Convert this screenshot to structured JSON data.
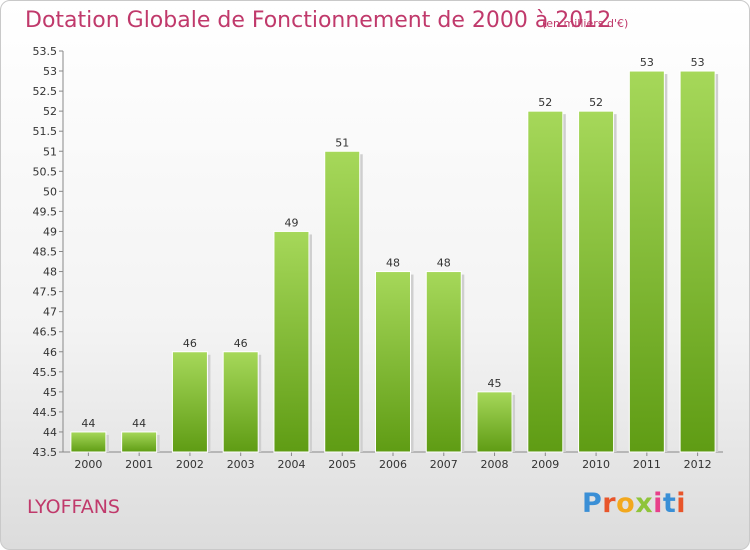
{
  "header": {
    "title": "Dotation Globale de Fonctionnement de 2000 à 2012",
    "unit": "(en milliers d'€)"
  },
  "footer": {
    "city": "LYOFFANS",
    "brand": "Proxiti",
    "brand_colors": [
      "#3a8fd6",
      "#e8552a",
      "#f2a81d",
      "#8fc43a",
      "#e83f8a",
      "#3a8fd6",
      "#e8552a"
    ]
  },
  "colors": {
    "title": "#c0396b",
    "bar_top": "#a6d85a",
    "bar_bottom": "#5f9c14"
  },
  "chart_data": {
    "type": "bar",
    "title": "Dotation Globale de Fonctionnement de 2000 à 2012",
    "xlabel": "",
    "ylabel": "",
    "categories": [
      "2000",
      "2001",
      "2002",
      "2003",
      "2004",
      "2005",
      "2006",
      "2007",
      "2008",
      "2009",
      "2010",
      "2011",
      "2012"
    ],
    "values": [
      44,
      44,
      46,
      46,
      49,
      51,
      48,
      48,
      45,
      52,
      52,
      53,
      53
    ],
    "ylim": [
      43.5,
      53.5
    ],
    "yticks": [
      "43.5",
      "44",
      "44.5",
      "45",
      "45.5",
      "46",
      "46.5",
      "47",
      "47.5",
      "48",
      "48.5",
      "49",
      "49.5",
      "50",
      "50.5",
      "51",
      "51.5",
      "52",
      "52.5",
      "53",
      "53.5"
    ],
    "grid": false,
    "legend": "none"
  }
}
